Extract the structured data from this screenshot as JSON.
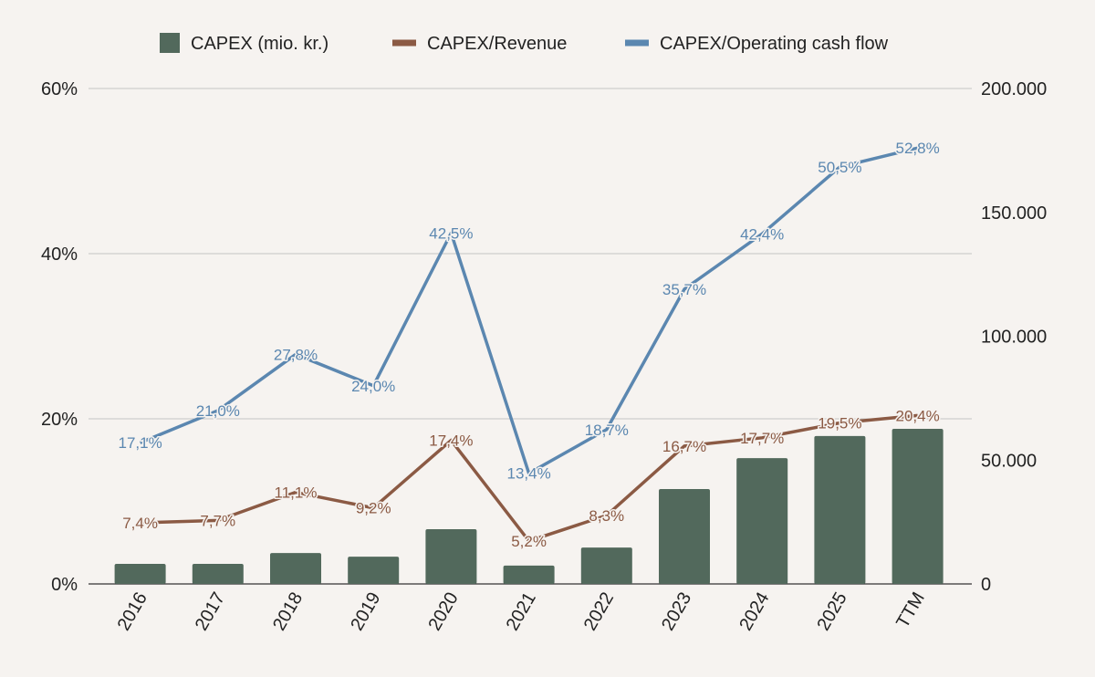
{
  "chart_data": {
    "type": "bar+line",
    "categories": [
      "2016",
      "2017",
      "2018",
      "2019",
      "2020",
      "2021",
      "2022",
      "2023",
      "2024",
      "2025",
      "TTM"
    ],
    "series": [
      {
        "name": "CAPEX (mio. kr.)",
        "type": "bar",
        "axis": "right",
        "color": "#52695c",
        "values": [
          8100,
          8100,
          12500,
          11000,
          22100,
          7400,
          14700,
          38300,
          50800,
          59700,
          62600
        ]
      },
      {
        "name": "CAPEX/Revenue",
        "type": "line",
        "axis": "left",
        "color": "#8b5a44",
        "values": [
          7.4,
          7.7,
          11.1,
          9.2,
          17.4,
          5.2,
          8.3,
          16.7,
          17.7,
          19.5,
          20.4
        ],
        "labels": [
          "7,4%",
          "7,7%",
          "11,1%",
          "9,2%",
          "17,4%",
          "5,2%",
          "8,3%",
          "16,7%",
          "17,7%",
          "19,5%",
          "20,4%"
        ]
      },
      {
        "name": "CAPEX/Operating cash flow",
        "type": "line",
        "axis": "left",
        "color": "#5b87b0",
        "values": [
          17.1,
          21.0,
          27.8,
          24.0,
          42.5,
          13.4,
          18.7,
          35.7,
          42.4,
          50.5,
          52.8
        ],
        "labels": [
          "17,1%",
          "21,0%",
          "27,8%",
          "24,0%",
          "42,5%",
          "13,4%",
          "18,7%",
          "35,7%",
          "42,4%",
          "50,5%",
          "52,8%"
        ]
      }
    ],
    "left_axis": {
      "ylim": [
        0,
        60
      ],
      "ticks": [
        0,
        20,
        40,
        60
      ],
      "tick_labels": [
        "0%",
        "20%",
        "40%",
        "60%"
      ]
    },
    "right_axis": {
      "ylim": [
        0,
        200000
      ],
      "ticks": [
        0,
        50000,
        100000,
        150000,
        200000
      ],
      "tick_labels": [
        "0",
        "50.000",
        "100.000",
        "150.000",
        "200.000"
      ]
    },
    "grid": true,
    "legend_position": "top-center",
    "title": "",
    "xlabel": "",
    "ylabel": ""
  }
}
